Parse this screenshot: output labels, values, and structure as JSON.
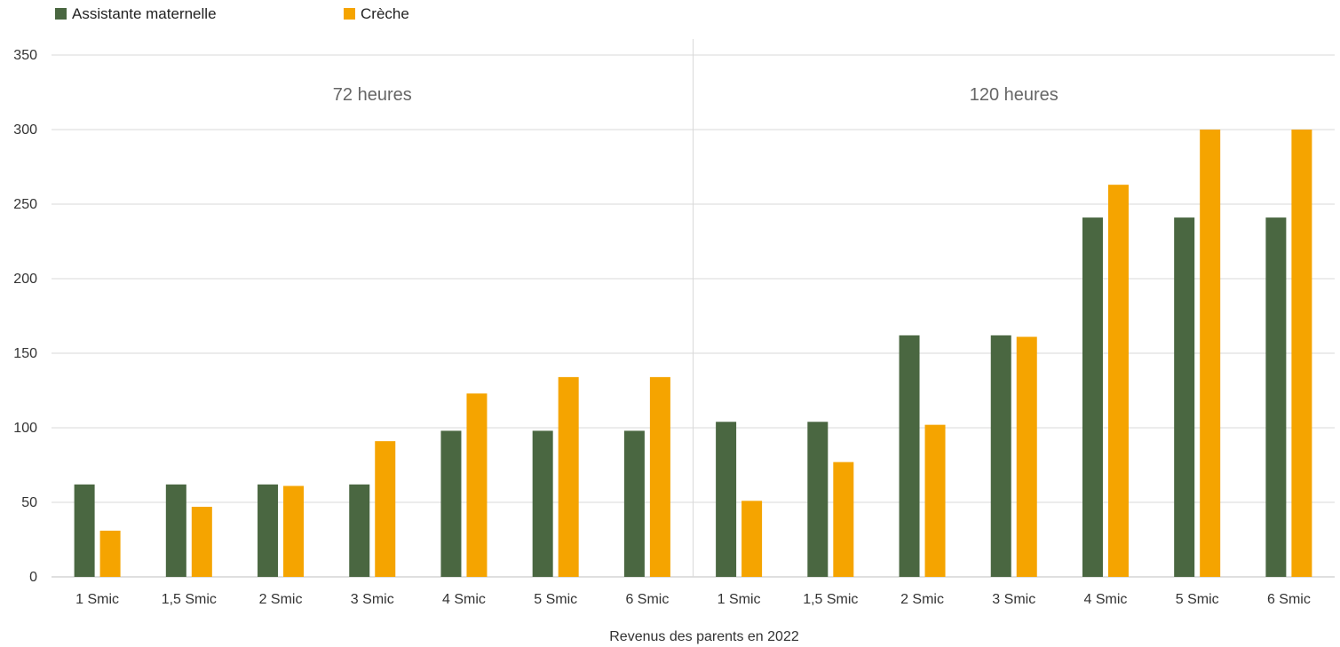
{
  "chart_data": {
    "type": "bar",
    "xlabel": "Revenus des parents en 2022",
    "ylabel": "",
    "ylim": [
      0,
      350
    ],
    "yticks": [
      0,
      50,
      100,
      150,
      200,
      250,
      300,
      350
    ],
    "grid": true,
    "legend_position": "top-left",
    "groups": [
      "72 heures",
      "120 heures"
    ],
    "categories": [
      "1 Smic",
      "1,5 Smic",
      "2 Smic",
      "3 Smic",
      "4 Smic",
      "5 Smic",
      "6 Smic",
      "1 Smic",
      "1,5 Smic",
      "2 Smic",
      "3 Smic",
      "4 Smic",
      "5 Smic",
      "6 Smic"
    ],
    "series": [
      {
        "name": "Assistante maternelle",
        "color": "#4a6741",
        "values": [
          62,
          62,
          62,
          62,
          98,
          98,
          98,
          104,
          104,
          162,
          162,
          241,
          241,
          241
        ]
      },
      {
        "name": "Crèche",
        "color": "#f5a400",
        "values": [
          31,
          47,
          61,
          91,
          123,
          134,
          134,
          51,
          77,
          102,
          161,
          263,
          300,
          300
        ]
      }
    ]
  }
}
